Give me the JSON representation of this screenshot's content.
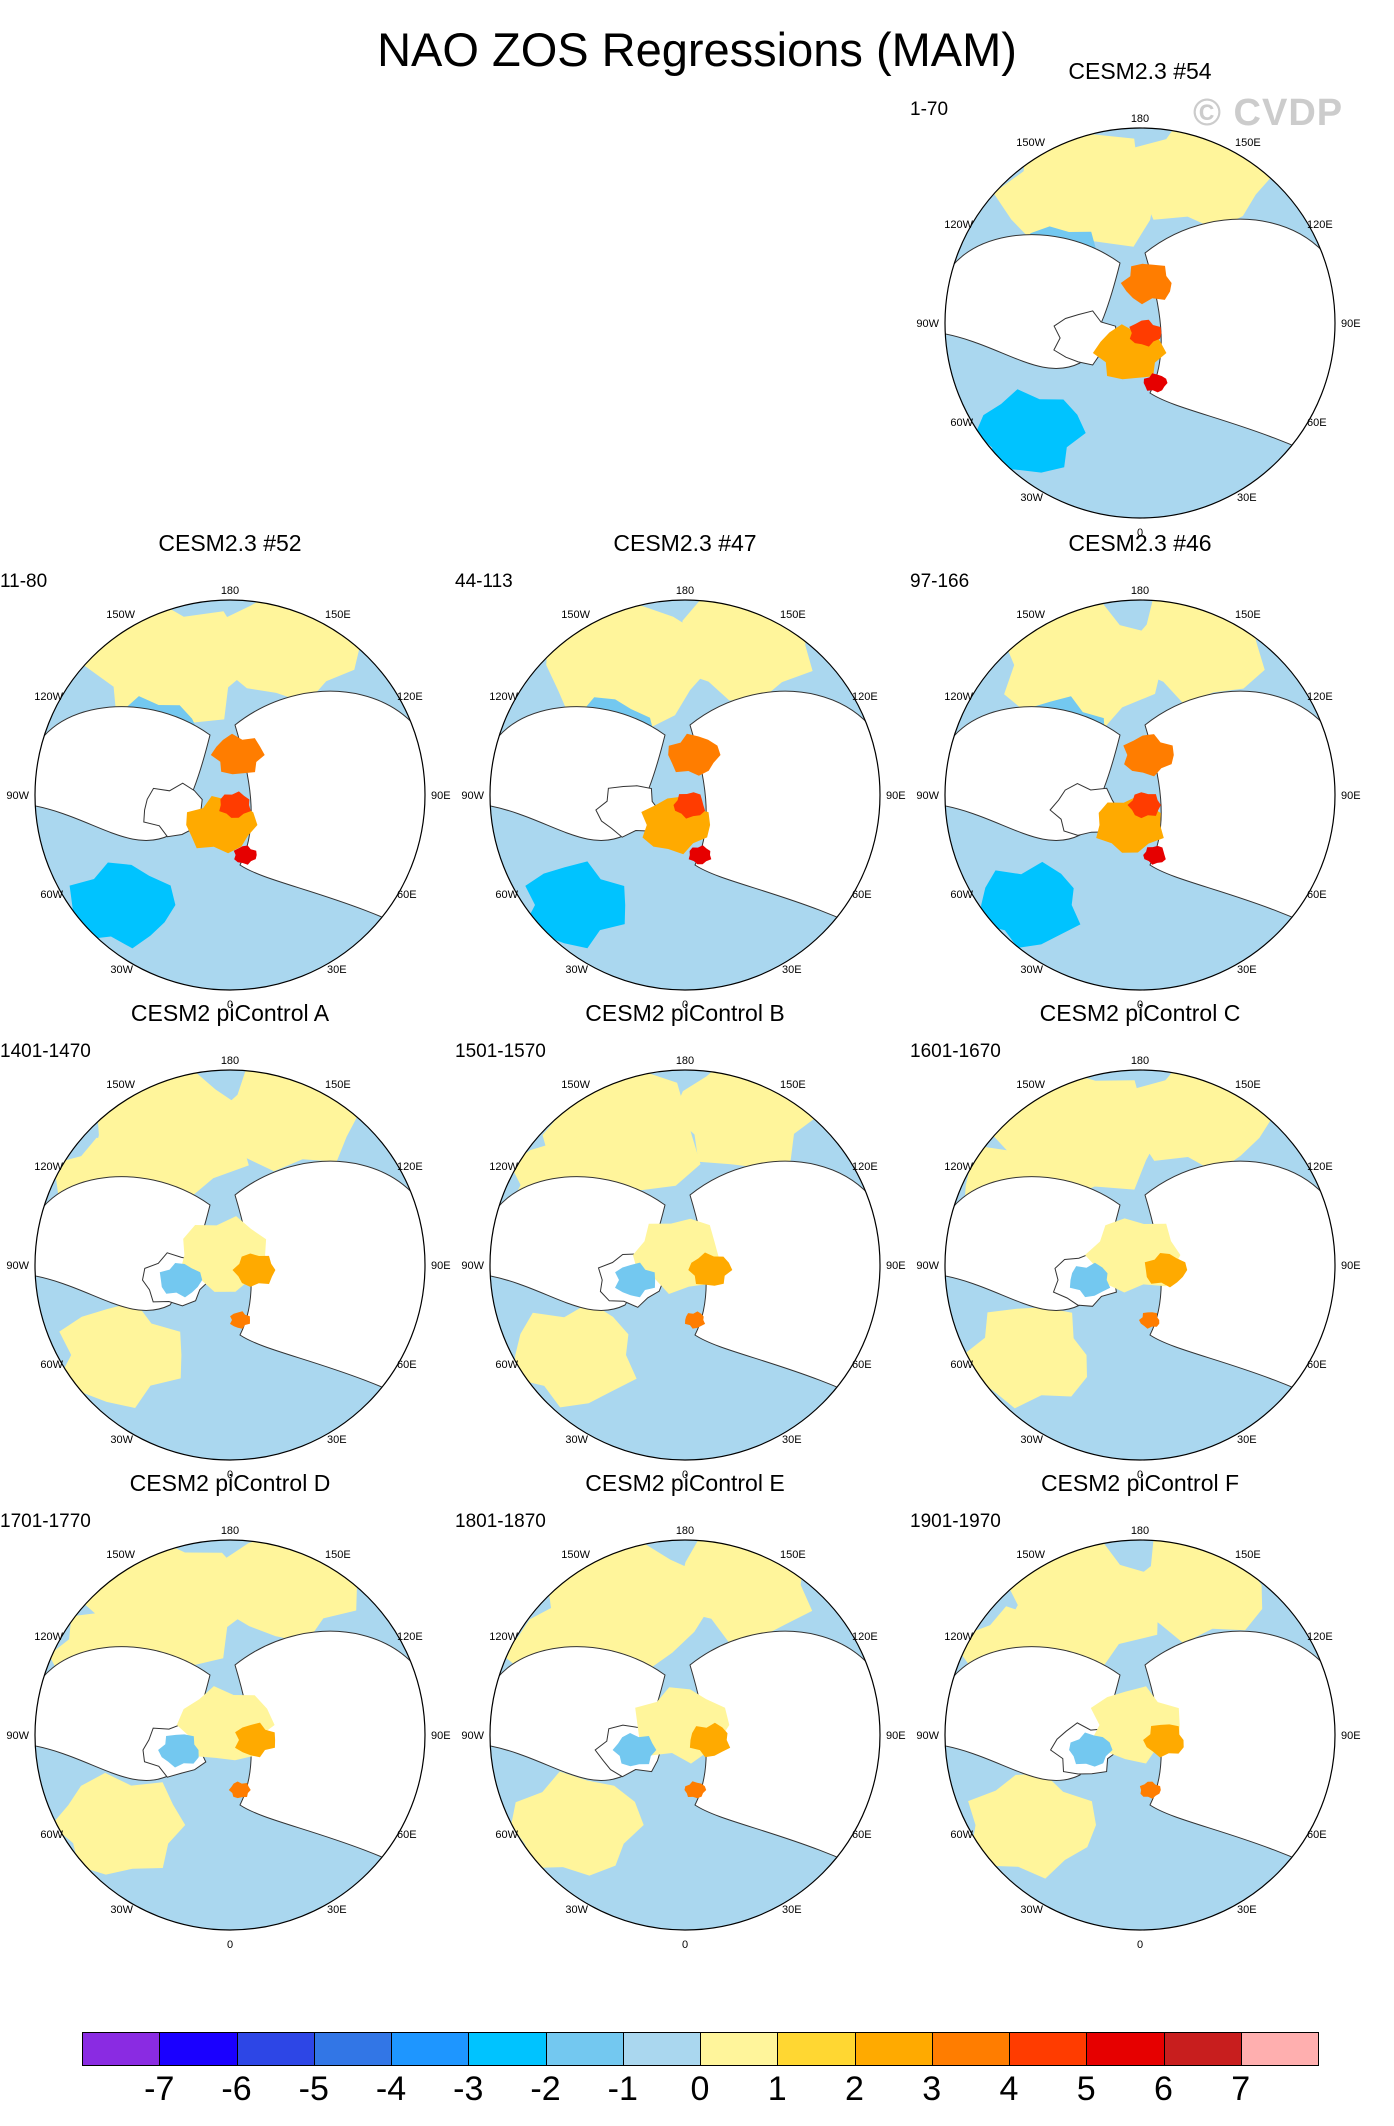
{
  "title": "NAO ZOS Regressions (MAM)",
  "watermark": "© CVDP",
  "axis_labels": {
    "lon_180": "180",
    "lon_150w": "150W",
    "lon_150e": "150E",
    "lon_120w": "120W",
    "lon_120e": "120E",
    "lon_90w": "90W",
    "lon_90e": "90E",
    "lon_60w": "60W",
    "lon_60e": "60E",
    "lon_30w": "30W",
    "lon_30e": "30E",
    "lon_0": "0"
  },
  "panels": [
    {
      "id": "p54",
      "title": "CESM2.3 #54",
      "period": "1-70",
      "regime": "lens"
    },
    {
      "id": "p52",
      "title": "CESM2.3 #52",
      "period": "11-80",
      "regime": "lens"
    },
    {
      "id": "p47",
      "title": "CESM2.3 #47",
      "period": "44-113",
      "regime": "lens"
    },
    {
      "id": "p46",
      "title": "CESM2.3 #46",
      "period": "97-166",
      "regime": "lens"
    },
    {
      "id": "pA",
      "title": "CESM2 piControl A",
      "period": "1401-1470",
      "regime": "picontrol"
    },
    {
      "id": "pB",
      "title": "CESM2 piControl B",
      "period": "1501-1570",
      "regime": "picontrol"
    },
    {
      "id": "pC",
      "title": "CESM2 piControl C",
      "period": "1601-1670",
      "regime": "picontrol"
    },
    {
      "id": "pD",
      "title": "CESM2 piControl D",
      "period": "1701-1770",
      "regime": "picontrol"
    },
    {
      "id": "pE",
      "title": "CESM2 piControl E",
      "period": "1801-1870",
      "regime": "picontrol"
    },
    {
      "id": "pF",
      "title": "CESM2 piControl F",
      "period": "1901-1970",
      "regime": "picontrol"
    }
  ],
  "colorbar": {
    "colors": [
      "#8a2be2",
      "#1a00ff",
      "#2d46e6",
      "#3276e6",
      "#1e96ff",
      "#00c3ff",
      "#73c8f0",
      "#aad7ef",
      "#fff59b",
      "#ffd732",
      "#ffaa00",
      "#ff7d00",
      "#ff3c00",
      "#e60000",
      "#c81e1e",
      "#ffafaf"
    ],
    "labels": [
      "-7",
      "-6",
      "-5",
      "-4",
      "-3",
      "-2",
      "-1",
      "0",
      "1",
      "2",
      "3",
      "4",
      "5",
      "6",
      "7"
    ]
  }
}
